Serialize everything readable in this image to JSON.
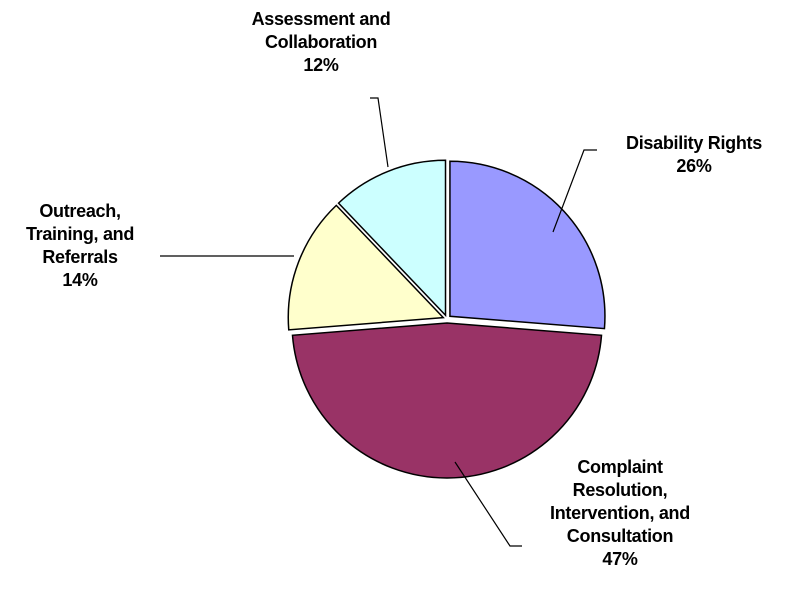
{
  "chart_data": {
    "type": "pie",
    "categories": [
      "Disability Rights",
      "Complaint Resolution, Intervention, and Consultation",
      "Outreach, Training, and Referrals",
      "Assessment and Collaboration"
    ],
    "values": [
      26,
      47,
      14,
      12
    ],
    "value_labels": [
      "26%",
      "47%",
      "14%",
      "12%"
    ],
    "colors": [
      "#9999ff",
      "#993366",
      "#ffffcc",
      "#ccffff"
    ]
  }
}
